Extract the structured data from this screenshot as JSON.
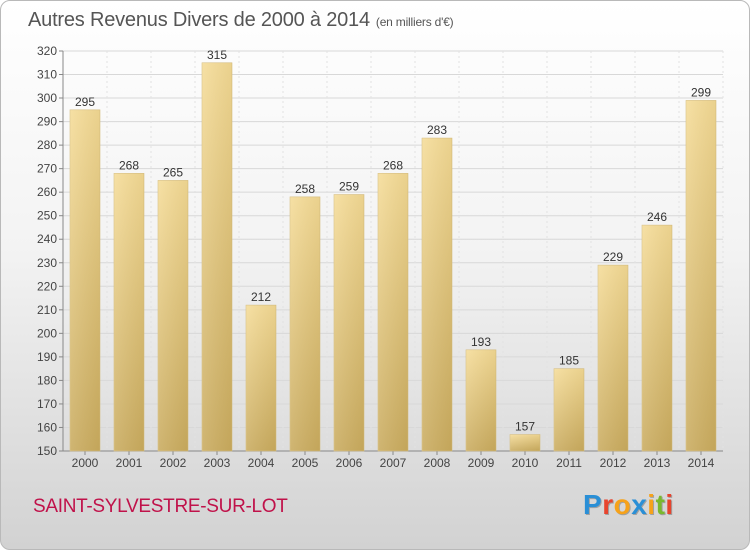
{
  "title": "Autres Revenus Divers de 2000 à 2014",
  "subtitle": "(en milliers d'€)",
  "commune": "SAINT-SYLVESTRE-SUR-LOT",
  "logo": {
    "letters": [
      "P",
      "r",
      "o",
      "x",
      "i",
      "t",
      "i"
    ],
    "colors": [
      "#2a8fd6",
      "#e7442e",
      "#f6a21a",
      "#2a8fd6",
      "#f6a21a",
      "#7ab82e",
      "#e7442e"
    ]
  },
  "colors": {
    "bar_top": "#f5dc98",
    "bar_bottom": "#c9ab5f",
    "title": "#555555",
    "commune": "#c0124a"
  },
  "chart_data": {
    "type": "bar",
    "categories": [
      "2000",
      "2001",
      "2002",
      "2003",
      "2004",
      "2005",
      "2006",
      "2007",
      "2008",
      "2009",
      "2010",
      "2011",
      "2012",
      "2013",
      "2014"
    ],
    "values": [
      295,
      268,
      265,
      315,
      212,
      258,
      259,
      268,
      283,
      193,
      157,
      185,
      229,
      246,
      299
    ],
    "ylim": [
      150,
      320
    ],
    "yticks": [
      150,
      160,
      170,
      180,
      190,
      200,
      210,
      220,
      230,
      240,
      250,
      260,
      270,
      280,
      290,
      300,
      310,
      320
    ],
    "grid": true,
    "data_labels": true
  }
}
